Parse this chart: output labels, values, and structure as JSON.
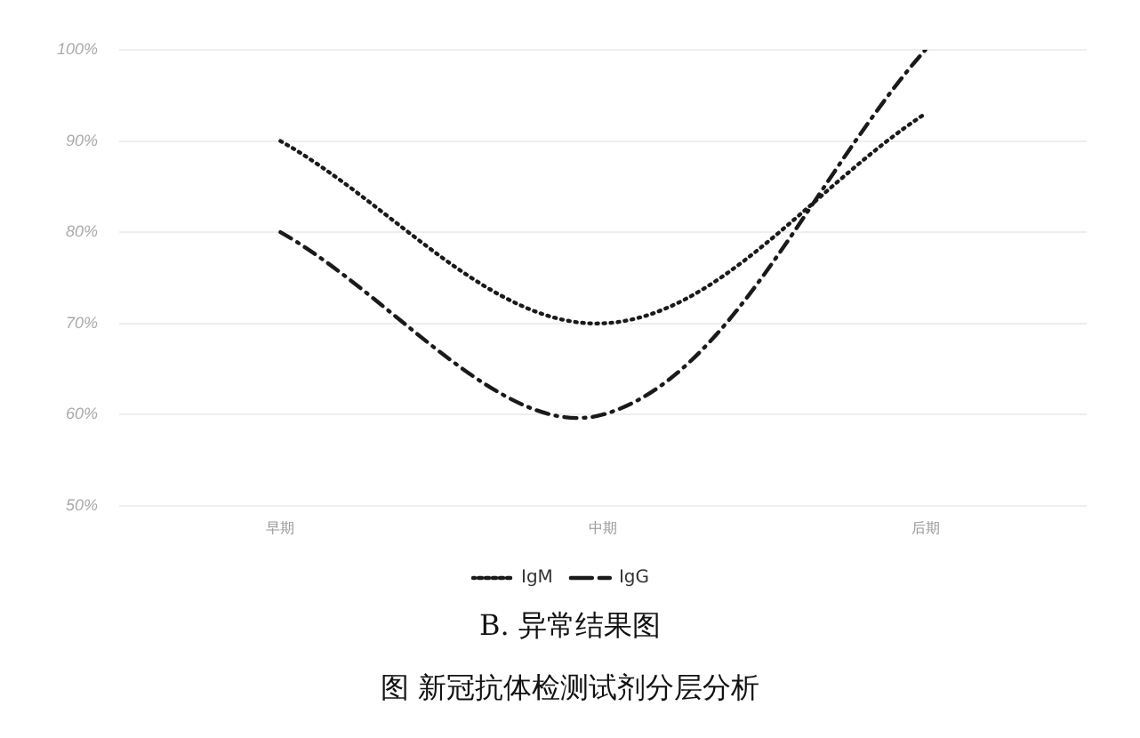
{
  "chart_data": {
    "type": "line",
    "title": "B. 异常结果图",
    "subtitle": "图  新冠抗体检测试剂分层分析",
    "categories": [
      "早期",
      "中期",
      "后期"
    ],
    "series": [
      {
        "name": "IgM",
        "color": "#1a1a1a",
        "values": [
          90,
          70,
          93
        ],
        "line_style": "dotted"
      },
      {
        "name": "IgG",
        "color": "#1a1a1a",
        "values": [
          80,
          60,
          100
        ],
        "line_style": "dashed"
      }
    ],
    "ylim": [
      50,
      100
    ],
    "yticks": [
      {
        "value": 50,
        "label": "50%"
      },
      {
        "value": 60,
        "label": "60%"
      },
      {
        "value": 70,
        "label": "70%"
      },
      {
        "value": 80,
        "label": "80%"
      },
      {
        "value": 90,
        "label": "90%"
      },
      {
        "value": 100,
        "label": "100%"
      }
    ],
    "grid": "y",
    "legend": "bottom"
  }
}
